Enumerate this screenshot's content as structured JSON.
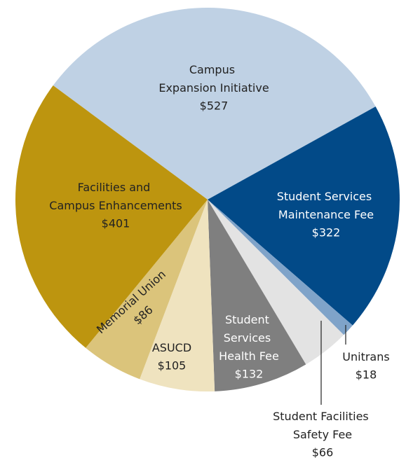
{
  "chart_data": {
    "type": "pie",
    "categories": [
      "Campus Expansion Initiative",
      "Student Services Maintenance Fee",
      "Unitrans",
      "Student Facilities Safety Fee",
      "Student Services Health Fee",
      "ASUCD",
      "Memorial Union",
      "Facilities and Campus Enhancements"
    ],
    "values": [
      527,
      322,
      18,
      66,
      132,
      105,
      86,
      401
    ],
    "value_labels": [
      "$527",
      "$322",
      "$18",
      "$66",
      "$132",
      "$105",
      "$86",
      "$401"
    ],
    "colors": [
      "#bfd1e4",
      "#024a88",
      "#7fa3c9",
      "#e3e3e3",
      "#7f7f7f",
      "#efe3bf",
      "#dbc47b",
      "#bd950f"
    ]
  }
}
